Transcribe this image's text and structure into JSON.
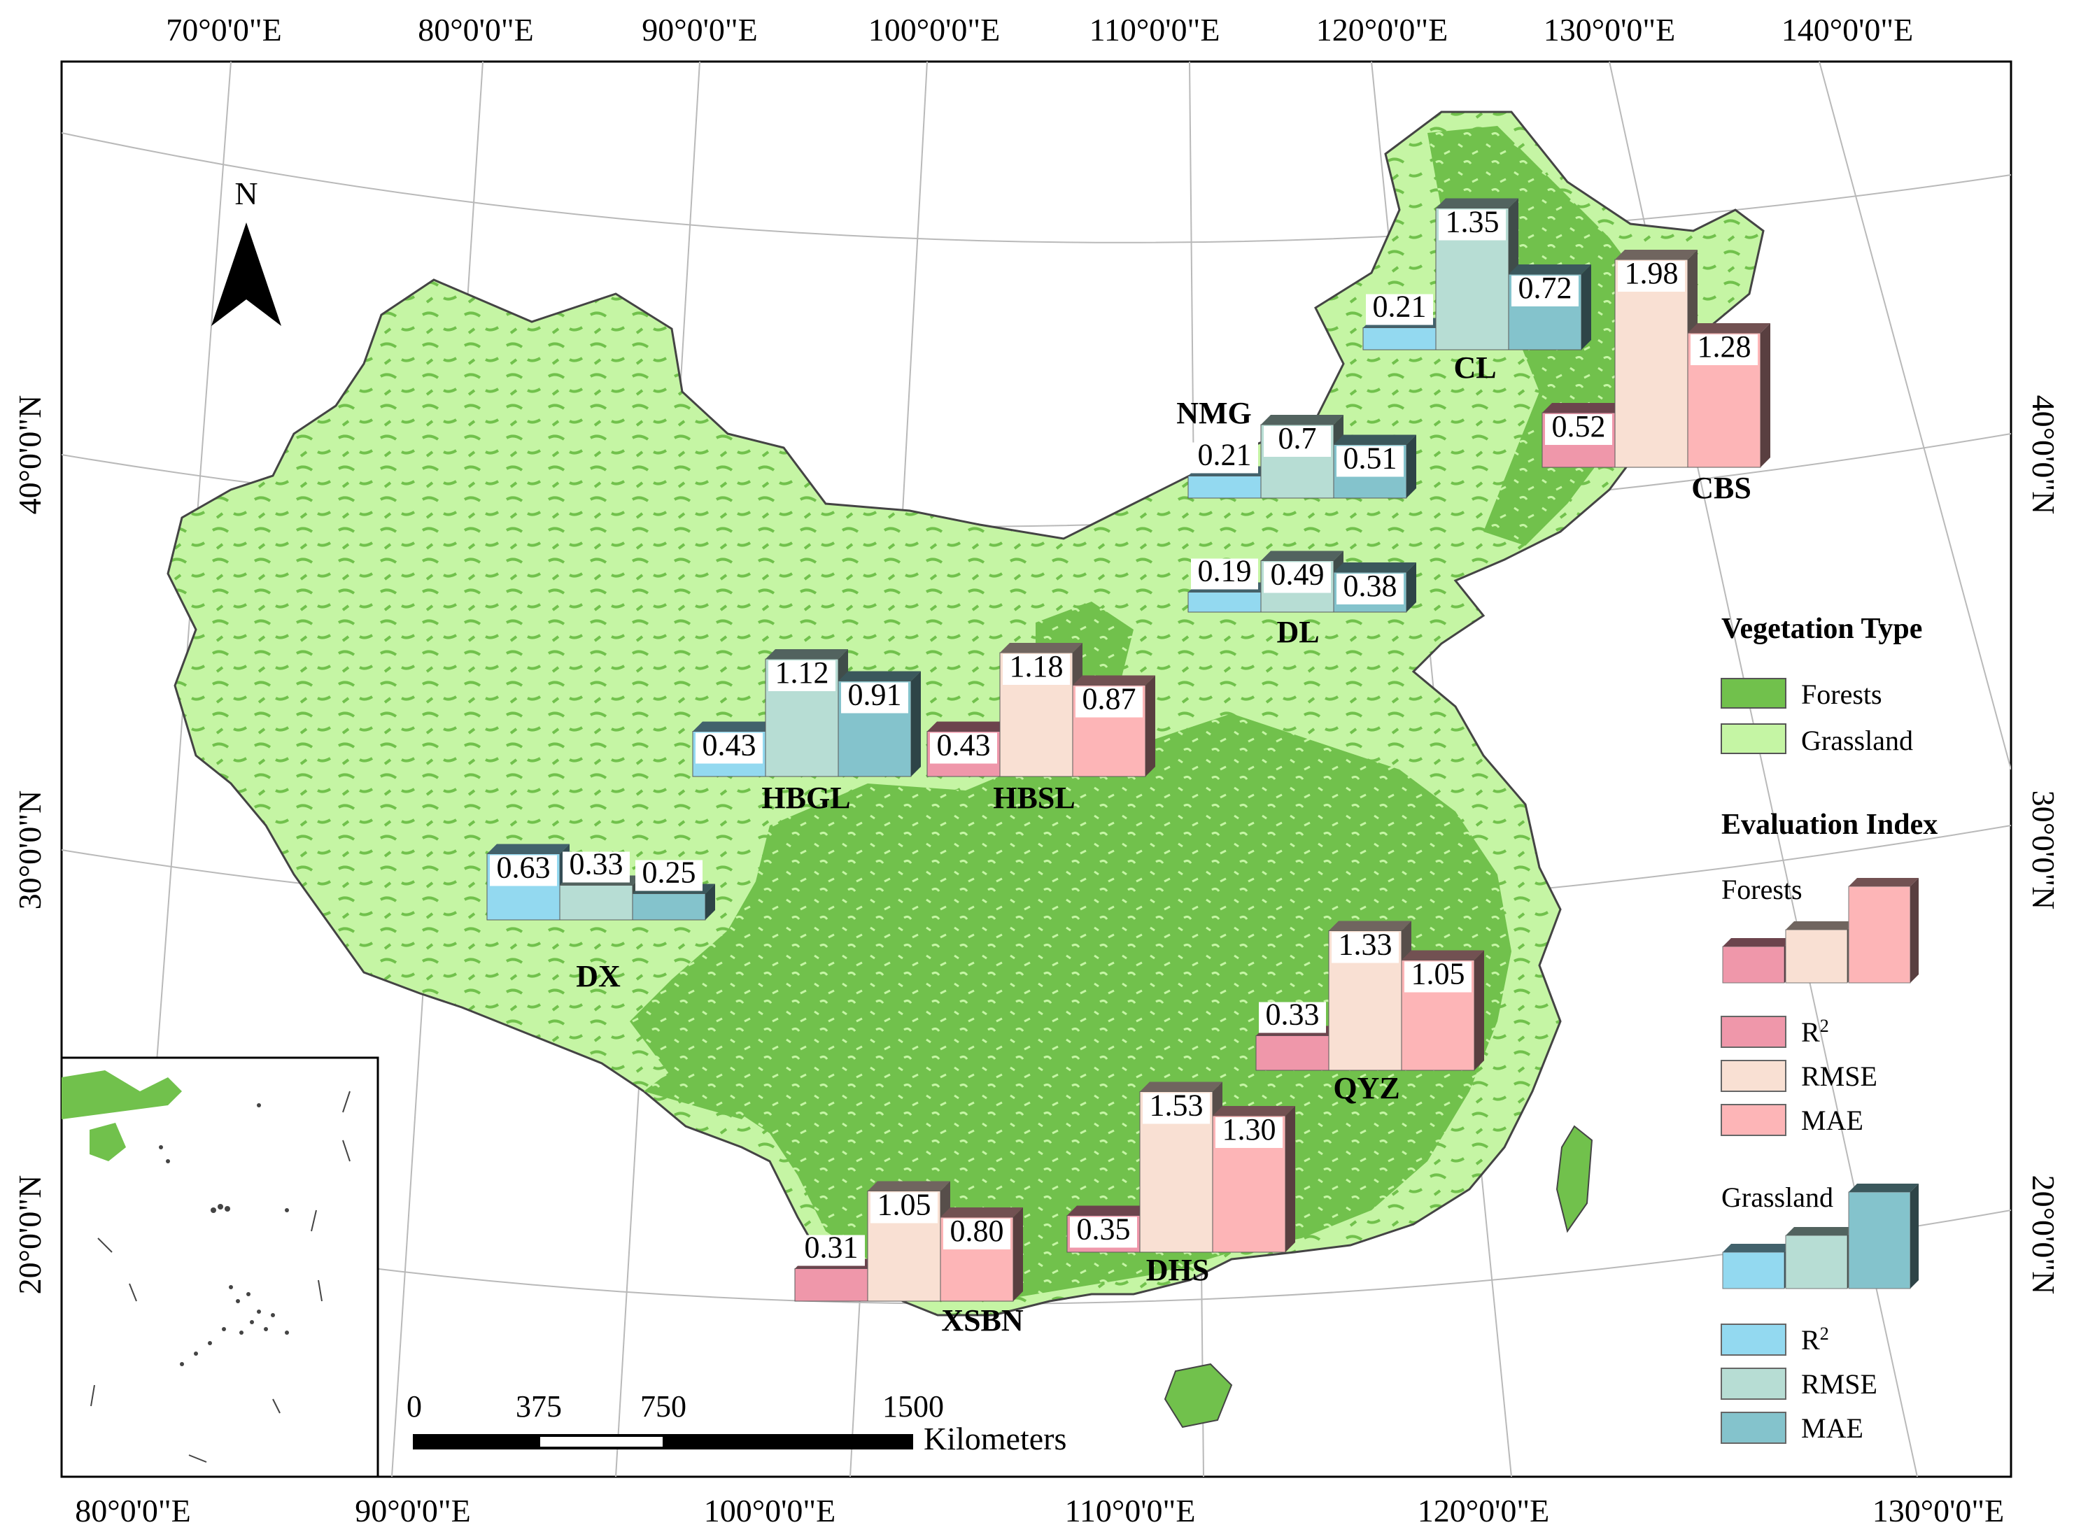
{
  "north_label": "N",
  "top_longitudes": [
    "70°0'0\"E",
    "80°0'0\"E",
    "90°0'0\"E",
    "100°0'0\"E",
    "110°0'0\"E",
    "120°0'0\"E",
    "130°0'0\"E",
    "140°0'0\"E"
  ],
  "bottom_longitudes": [
    "80°0'0\"E",
    "90°0'0\"E",
    "100°0'0\"E",
    "110°0'0\"E",
    "120°0'0\"E",
    "130°0'0\"E"
  ],
  "latitudes": [
    "40°0'0\"N",
    "30°0'0\"N",
    "20°0'0\"N"
  ],
  "scale_bar": {
    "ticks": [
      "0",
      "375",
      "750",
      "1500"
    ],
    "unit": "Kilometers"
  },
  "colors": {
    "forests": "#71c14c",
    "grassland": "#c5f5a4",
    "forest_r2": "#ef97aa",
    "forest_rmse": "#f9e0d3",
    "forest_mae": "#fdb5b7",
    "grass_r2": "#93d9f0",
    "grass_rmse": "#b7ddd4",
    "grass_mae": "#84c3cc"
  },
  "sites": [
    {
      "name": "CL",
      "type": "Grassland",
      "values": {
        "R2": "0.21",
        "RMSE": "1.35",
        "MAE": "0.72"
      }
    },
    {
      "name": "CBS",
      "type": "Forests",
      "values": {
        "R2": "0.52",
        "RMSE": "1.98",
        "MAE": "1.28"
      }
    },
    {
      "name": "NMG",
      "type": "Grassland",
      "values": {
        "R2": "0.21",
        "RMSE": "0.7",
        "MAE": "0.51"
      }
    },
    {
      "name": "DL",
      "type": "Grassland",
      "values": {
        "R2": "0.19",
        "RMSE": "0.49",
        "MAE": "0.38"
      }
    },
    {
      "name": "HBGL",
      "type": "Grassland",
      "values": {
        "R2": "0.43",
        "RMSE": "1.12",
        "MAE": "0.91"
      }
    },
    {
      "name": "HBSL",
      "type": "Forests",
      "values": {
        "R2": "0.43",
        "RMSE": "1.18",
        "MAE": "0.87"
      }
    },
    {
      "name": "DX",
      "type": "Grassland",
      "values": {
        "R2": "0.63",
        "RMSE": "0.33",
        "MAE": "0.25"
      }
    },
    {
      "name": "QYZ",
      "type": "Forests",
      "values": {
        "R2": "0.33",
        "RMSE": "1.33",
        "MAE": "1.05"
      }
    },
    {
      "name": "DHS",
      "type": "Forests",
      "values": {
        "R2": "0.35",
        "RMSE": "1.53",
        "MAE": "1.30"
      }
    },
    {
      "name": "XSBN",
      "type": "Forests",
      "values": {
        "R2": "0.31",
        "RMSE": "1.05",
        "MAE": "0.80"
      }
    }
  ],
  "legend": {
    "vegetation_title": "Vegetation Type",
    "vegetation_items": [
      "Forests",
      "Grassland"
    ],
    "index_title": "Evaluation Index",
    "forests_label": "Forests",
    "grassland_label": "Grassland",
    "index_items": [
      "R2",
      "RMSE",
      "MAE"
    ]
  }
}
